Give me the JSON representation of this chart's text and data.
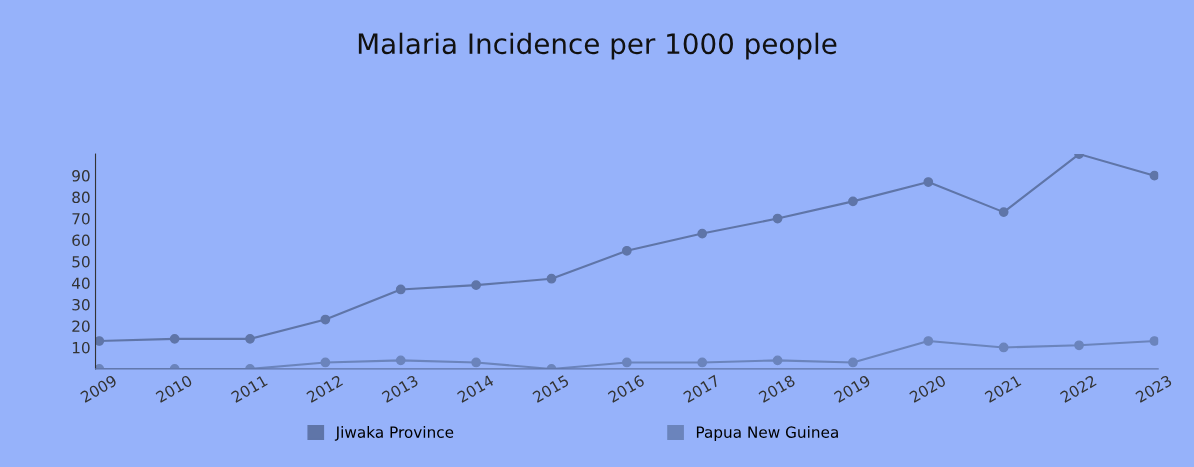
{
  "chart_data": {
    "type": "line",
    "title": "Malaria Incidence per 1000 people",
    "categories": [
      "2009",
      "2010",
      "2011",
      "2012",
      "2013",
      "2014",
      "2015",
      "2016",
      "2017",
      "2018",
      "2019",
      "2020",
      "2021",
      "2022",
      "2023"
    ],
    "series": [
      {
        "name": "Jiwaka Province",
        "color": "#5f75a8",
        "values": [
          13,
          14,
          14,
          23,
          37,
          39,
          42,
          55,
          63,
          70,
          78,
          87,
          73,
          100,
          90
        ]
      },
      {
        "name": "Papua New Guinea",
        "color": "#6b84bc",
        "values": [
          0,
          0,
          0,
          3,
          4,
          3,
          0,
          3,
          3,
          4,
          3,
          13,
          10,
          11,
          13
        ]
      }
    ],
    "ylim": [
      0,
      100
    ],
    "yticks": [
      10,
      20,
      30,
      40,
      50,
      60,
      70,
      80,
      90
    ],
    "grid": false,
    "legend": "bottom",
    "marker": "circle",
    "line_style": "solid"
  }
}
